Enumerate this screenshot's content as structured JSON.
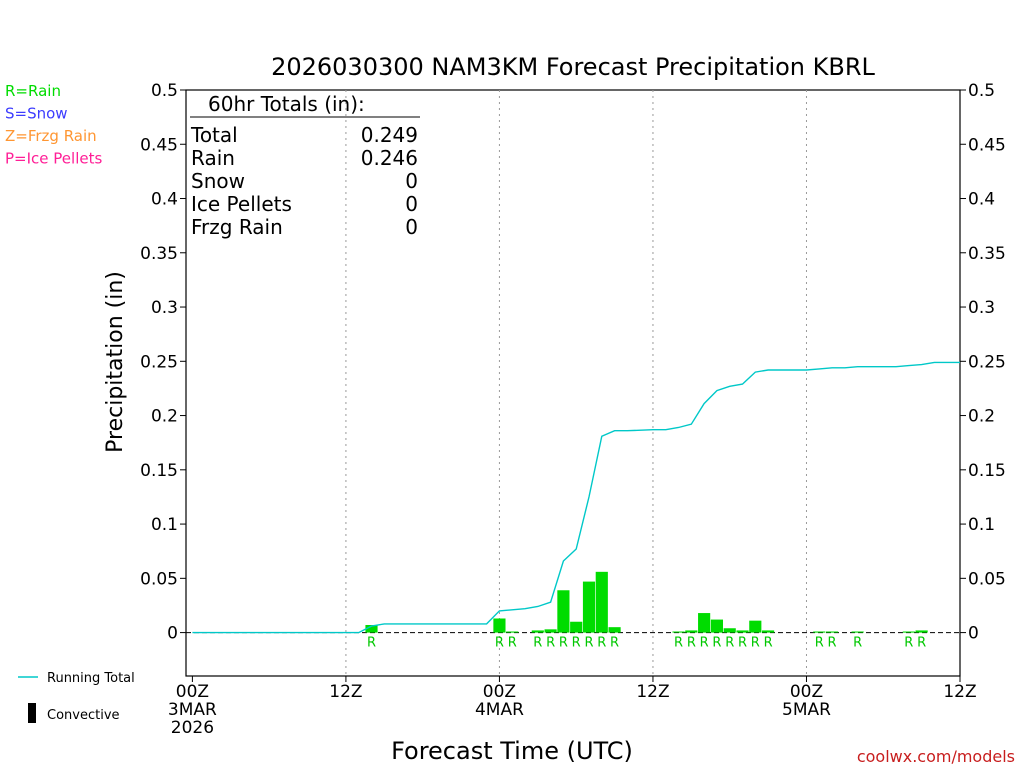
{
  "chart_data": {
    "type": "bar",
    "title": "2026030300 NAM3KM Forecast Precipitation KBRL",
    "xlabel": "Forecast Time (UTC)",
    "ylabel": "Precipitation (in)",
    "ylim": [
      -0.04,
      0.5
    ],
    "xlim": [
      -0.5,
      60
    ],
    "yticks": [
      0,
      0.05,
      0.1,
      0.15,
      0.2,
      0.25,
      0.3,
      0.35,
      0.4,
      0.45,
      0.5
    ],
    "ytick_labels": [
      "0",
      "0.05",
      "0.1",
      "0.15",
      "0.2",
      "0.25",
      "0.3",
      "0.35",
      "0.4",
      "0.45",
      "0.5"
    ],
    "xticks": [
      {
        "hour": 0,
        "lines": [
          "00Z",
          "3MAR",
          "2026"
        ]
      },
      {
        "hour": 12,
        "lines": [
          "12Z"
        ]
      },
      {
        "hour": 24,
        "lines": [
          "00Z",
          "4MAR"
        ]
      },
      {
        "hour": 36,
        "lines": [
          "12Z"
        ]
      },
      {
        "hour": 48,
        "lines": [
          "00Z",
          "5MAR"
        ]
      },
      {
        "hour": 60,
        "lines": [
          "12Z"
        ]
      }
    ],
    "grid_vertical": [
      12,
      24,
      36,
      48
    ],
    "hourly_precip": [
      {
        "hour": 14,
        "value": 0.007,
        "type": "R"
      },
      {
        "hour": 24,
        "value": 0.013,
        "type": "R"
      },
      {
        "hour": 25,
        "value": 0.001,
        "type": "R"
      },
      {
        "hour": 27,
        "value": 0.002,
        "type": "R"
      },
      {
        "hour": 28,
        "value": 0.003,
        "type": "R"
      },
      {
        "hour": 29,
        "value": 0.039,
        "type": "R"
      },
      {
        "hour": 30,
        "value": 0.01,
        "type": "R"
      },
      {
        "hour": 31,
        "value": 0.047,
        "type": "R"
      },
      {
        "hour": 32,
        "value": 0.056,
        "type": "R"
      },
      {
        "hour": 33,
        "value": 0.005,
        "type": "R"
      },
      {
        "hour": 38,
        "value": 0.001,
        "type": "R"
      },
      {
        "hour": 39,
        "value": 0.002,
        "type": "R"
      },
      {
        "hour": 40,
        "value": 0.018,
        "type": "R"
      },
      {
        "hour": 41,
        "value": 0.012,
        "type": "R"
      },
      {
        "hour": 42,
        "value": 0.004,
        "type": "R"
      },
      {
        "hour": 43,
        "value": 0.002,
        "type": "R"
      },
      {
        "hour": 44,
        "value": 0.011,
        "type": "R"
      },
      {
        "hour": 45,
        "value": 0.002,
        "type": "R"
      },
      {
        "hour": 49,
        "value": 0.001,
        "type": "R"
      },
      {
        "hour": 50,
        "value": 0.001,
        "type": "R"
      },
      {
        "hour": 52,
        "value": 0.001,
        "type": "R"
      },
      {
        "hour": 56,
        "value": 0.001,
        "type": "R"
      },
      {
        "hour": 57,
        "value": 0.002,
        "type": "R"
      }
    ],
    "running_total": {
      "name": "Running Total",
      "color": "#00c8c8",
      "x": [
        0,
        13,
        14,
        15,
        23,
        24,
        25,
        26,
        27,
        28,
        29,
        30,
        31,
        32,
        33,
        34,
        36,
        37,
        38,
        39,
        40,
        41,
        42,
        43,
        44,
        45,
        47,
        48,
        49,
        50,
        51,
        52,
        53,
        54,
        55,
        56,
        57,
        58,
        59,
        60
      ],
      "y": [
        0,
        0,
        0.006,
        0.008,
        0.008,
        0.02,
        0.021,
        0.022,
        0.024,
        0.028,
        0.066,
        0.077,
        0.125,
        0.181,
        0.186,
        0.186,
        0.187,
        0.187,
        0.189,
        0.192,
        0.211,
        0.223,
        0.227,
        0.229,
        0.24,
        0.242,
        0.242,
        0.242,
        0.243,
        0.244,
        0.244,
        0.245,
        0.245,
        0.245,
        0.245,
        0.246,
        0.247,
        0.249,
        0.249,
        0.249
      ]
    },
    "type_legend": [
      {
        "label": "R=Rain",
        "color": "#00dc00"
      },
      {
        "label": "S=Snow",
        "color": "#3c3cff"
      },
      {
        "label": "Z=Frzg Rain",
        "color": "#ff9632"
      },
      {
        "label": "P=Ice Pellets",
        "color": "#ff1e96"
      }
    ],
    "series_legend": [
      {
        "label": "Running Total",
        "color": "#00c8c8"
      },
      {
        "label": "Convective",
        "color": "#000000"
      }
    ],
    "totals_box": {
      "header": "60hr Totals (in):",
      "rows": [
        {
          "label": "Total",
          "value": "0.249"
        },
        {
          "label": "Rain",
          "value": "0.246"
        },
        {
          "label": "Snow",
          "value": "0"
        },
        {
          "label": "Ice Pellets",
          "value": "0"
        },
        {
          "label": "Frzg Rain",
          "value": "0"
        }
      ]
    },
    "bar_color": "#00dc00",
    "credit": "coolwx.com/models",
    "credit_color": "#c81e1e"
  }
}
